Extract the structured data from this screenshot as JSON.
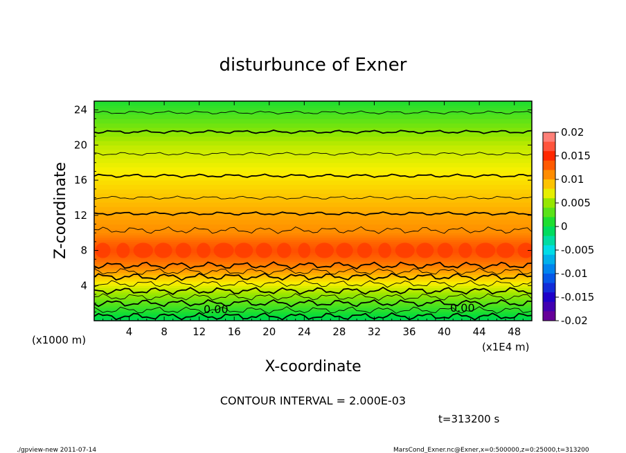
{
  "chart_data": {
    "type": "heatmap",
    "title": "disturbunce of Exner",
    "xlabel": "X-coordinate",
    "ylabel": "Z-coordinate",
    "x_unit": "(x1E4 m)",
    "y_unit": "(x1000 m)",
    "xlim": [
      0,
      50
    ],
    "ylim": [
      0,
      25
    ],
    "x_ticks": [
      4,
      8,
      12,
      16,
      20,
      24,
      28,
      32,
      36,
      40,
      44,
      48
    ],
    "y_ticks": [
      4,
      8,
      12,
      16,
      20,
      24
    ],
    "colorbar": {
      "min": -0.02,
      "max": 0.02,
      "tick_labels": [
        "0.02",
        "0.015",
        "0.01",
        "0.005",
        "0",
        "-0.005",
        "-0.01",
        "-0.015",
        "-0.02"
      ],
      "tick_values": [
        0.02,
        0.015,
        0.01,
        0.005,
        0,
        -0.005,
        -0.01,
        -0.015,
        -0.02
      ]
    },
    "contour_labels": [
      "0.00",
      "0.00"
    ],
    "contour_interval_text": "CONTOUR INTERVAL = 2.000E-03",
    "profile_by_height": [
      {
        "z": 0,
        "value": -0.001
      },
      {
        "z": 1,
        "value": 0.001
      },
      {
        "z": 2,
        "value": 0.003
      },
      {
        "z": 3,
        "value": 0.005
      },
      {
        "z": 4,
        "value": 0.007
      },
      {
        "z": 5,
        "value": 0.009
      },
      {
        "z": 6,
        "value": 0.011
      },
      {
        "z": 7,
        "value": 0.0125
      },
      {
        "z": 8,
        "value": 0.0135
      },
      {
        "z": 9,
        "value": 0.0125
      },
      {
        "z": 10,
        "value": 0.011
      },
      {
        "z": 12,
        "value": 0.01
      },
      {
        "z": 14,
        "value": 0.009
      },
      {
        "z": 16,
        "value": 0.008
      },
      {
        "z": 18,
        "value": 0.007
      },
      {
        "z": 20,
        "value": 0.006
      },
      {
        "z": 22,
        "value": 0.004
      },
      {
        "z": 24,
        "value": 0.002
      },
      {
        "z": 25,
        "value": 0.001
      }
    ],
    "time_label": "t=313200 s"
  },
  "footer": {
    "left": "./gpview-new   2011-07-14",
    "right": "MarsCond_Exner.nc@Exner,x=0:500000,z=0:25000,t=313200"
  }
}
